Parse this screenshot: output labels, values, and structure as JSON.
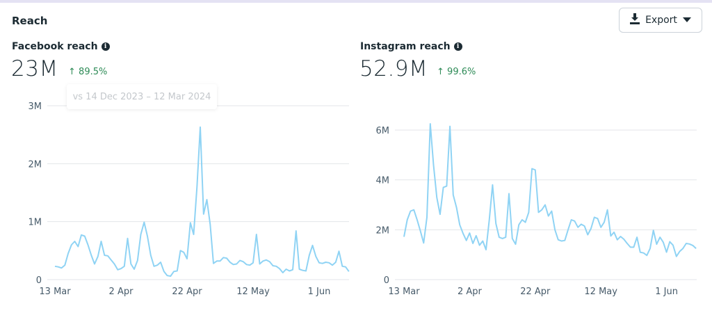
{
  "header": {
    "title": "Reach",
    "export_label": "Export",
    "export_icon": "download-icon",
    "export_caret": "caret-down-icon"
  },
  "facebook": {
    "label": "Facebook reach",
    "value": "23M",
    "delta": "89.5%",
    "delta_direction": "up",
    "comparison_tooltip": "vs 14 Dec 2023 – 12 Mar 2024"
  },
  "instagram": {
    "label": "Instagram reach",
    "value": "52.9M",
    "delta": "99.6%",
    "delta_direction": "up"
  },
  "colors": {
    "line": "#8fd3f4",
    "positive": "#2e8b57",
    "grid": "#e3e6e8"
  },
  "chart_data": [
    {
      "type": "line",
      "title": "Facebook reach",
      "unit": "M",
      "ylim": [
        0,
        3
      ],
      "yticks": [
        {
          "v": 0,
          "label": "0"
        },
        {
          "v": 1,
          "label": "1M"
        },
        {
          "v": 2,
          "label": "2M"
        },
        {
          "v": 3,
          "label": "3M"
        }
      ],
      "xticks": [
        {
          "day": 0,
          "label": "13 Mar"
        },
        {
          "day": 20,
          "label": "2 Apr"
        },
        {
          "day": 40,
          "label": "22 Apr"
        },
        {
          "day": 60,
          "label": "12 May"
        },
        {
          "day": 80,
          "label": "1 Jun"
        }
      ],
      "start": "13 Mar",
      "values": [
        0.23,
        0.22,
        0.2,
        0.25,
        0.45,
        0.6,
        0.66,
        0.57,
        0.77,
        0.75,
        0.6,
        0.42,
        0.27,
        0.4,
        0.66,
        0.42,
        0.41,
        0.34,
        0.27,
        0.17,
        0.19,
        0.23,
        0.71,
        0.27,
        0.18,
        0.33,
        0.78,
        0.99,
        0.75,
        0.42,
        0.23,
        0.25,
        0.3,
        0.14,
        0.07,
        0.06,
        0.14,
        0.15,
        0.5,
        0.47,
        0.36,
        0.98,
        0.78,
        1.6,
        2.63,
        1.13,
        1.38,
        0.95,
        0.28,
        0.32,
        0.32,
        0.38,
        0.37,
        0.3,
        0.26,
        0.27,
        0.33,
        0.31,
        0.26,
        0.25,
        0.29,
        0.78,
        0.27,
        0.32,
        0.34,
        0.31,
        0.24,
        0.23,
        0.19,
        0.12,
        0.18,
        0.15,
        0.17,
        0.84,
        0.18,
        0.16,
        0.15,
        0.42,
        0.59,
        0.4,
        0.29,
        0.28,
        0.3,
        0.29,
        0.25,
        0.3,
        0.49,
        0.23,
        0.22,
        0.14
      ]
    },
    {
      "type": "line",
      "title": "Instagram reach",
      "unit": "M",
      "ylim": [
        0,
        6
      ],
      "yticks": [
        {
          "v": 0,
          "label": "0"
        },
        {
          "v": 2,
          "label": "2M"
        },
        {
          "v": 4,
          "label": "4M"
        },
        {
          "v": 6,
          "label": "6M"
        }
      ],
      "xticks": [
        {
          "day": 0,
          "label": "13 Mar"
        },
        {
          "day": 20,
          "label": "2 Apr"
        },
        {
          "day": 40,
          "label": "22 Apr"
        },
        {
          "day": 60,
          "label": "12 May"
        },
        {
          "day": 80,
          "label": "1 Jun"
        }
      ],
      "start": "13 Mar",
      "values": [
        1.72,
        2.4,
        2.75,
        2.8,
        2.4,
        1.95,
        1.47,
        2.5,
        6.25,
        4.6,
        3.3,
        2.62,
        3.7,
        3.75,
        6.15,
        3.4,
        2.9,
        2.2,
        1.85,
        1.57,
        1.87,
        1.45,
        1.76,
        1.38,
        1.55,
        1.2,
        2.4,
        3.8,
        2.25,
        1.7,
        1.65,
        1.7,
        3.45,
        1.65,
        1.42,
        2.2,
        2.4,
        2.3,
        2.7,
        4.45,
        4.4,
        2.7,
        2.8,
        3.0,
        2.55,
        2.75,
        2.0,
        1.6,
        1.55,
        1.57,
        2.0,
        2.4,
        2.35,
        2.1,
        2.22,
        2.15,
        1.8,
        2.05,
        2.5,
        2.45,
        2.1,
        2.3,
        2.8,
        1.75,
        1.9,
        1.6,
        1.73,
        1.62,
        1.45,
        1.3,
        1.3,
        1.7,
        1.1,
        1.07,
        0.97,
        1.25,
        1.98,
        1.42,
        1.7,
        1.5,
        1.1,
        1.52,
        1.38,
        0.93,
        1.13,
        1.25,
        1.45,
        1.43,
        1.37,
        1.25
      ]
    }
  ]
}
